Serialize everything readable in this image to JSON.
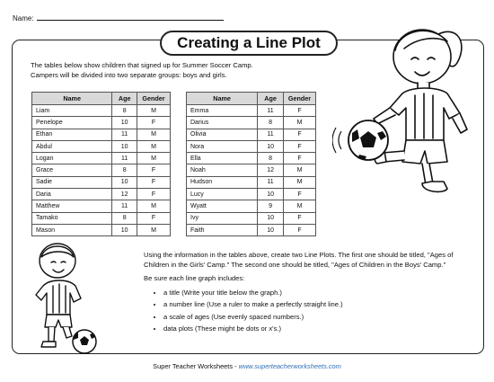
{
  "name_label": "Name:",
  "title": "Creating a Line Plot",
  "intro": {
    "line1": "The tables below show children that signed up for Summer Soccer Camp.",
    "line2": "Campers will be divided into two separate groups: boys and girls."
  },
  "table_headers": [
    "Name",
    "Age",
    "Gender"
  ],
  "table_left": [
    [
      "Liam",
      "8",
      "M"
    ],
    [
      "Penelope",
      "10",
      "F"
    ],
    [
      "Ethan",
      "11",
      "M"
    ],
    [
      "Abdul",
      "10",
      "M"
    ],
    [
      "Logan",
      "11",
      "M"
    ],
    [
      "Grace",
      "8",
      "F"
    ],
    [
      "Sadie",
      "10",
      "F"
    ],
    [
      "Daria",
      "12",
      "F"
    ],
    [
      "Matthew",
      "11",
      "M"
    ],
    [
      "Tamako",
      "8",
      "F"
    ],
    [
      "Mason",
      "10",
      "M"
    ]
  ],
  "table_right": [
    [
      "Emma",
      "11",
      "F"
    ],
    [
      "Darius",
      "8",
      "M"
    ],
    [
      "Olivia",
      "11",
      "F"
    ],
    [
      "Nora",
      "10",
      "F"
    ],
    [
      "Ella",
      "8",
      "F"
    ],
    [
      "Noah",
      "12",
      "M"
    ],
    [
      "Hudson",
      "11",
      "M"
    ],
    [
      "Lucy",
      "10",
      "F"
    ],
    [
      "Wyatt",
      "9",
      "M"
    ],
    [
      "Ivy",
      "10",
      "F"
    ],
    [
      "Faith",
      "10",
      "F"
    ]
  ],
  "instructions": {
    "para1": "Using the information in the tables above, create two Line Plots. The first one should be titled, \"Ages of Children in the Girls' Camp.\" The second one should be titled, \"Ages of Children in the Boys' Camp.\"",
    "para2": "Be sure each line graph includes:",
    "bullets": [
      "a title (Write your title below the graph.)",
      "a number line (Use a ruler to make a perfectly straight line.)",
      "a scale of ages (Use evenly spaced numbers.)",
      "data plots (These might be dots or x's.)"
    ]
  },
  "footer": {
    "brand": "Super Teacher Worksheets - ",
    "url": "www.superteacherworksheets.com"
  },
  "icons": {
    "girl": "girl-kicking-soccer-ball-illustration",
    "boy": "boy-with-soccer-ball-illustration"
  }
}
